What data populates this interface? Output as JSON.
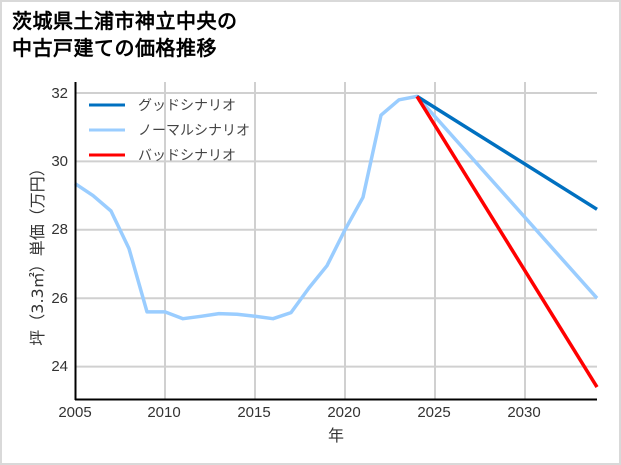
{
  "title": {
    "line1": "茨城県土浦市神立中央の",
    "line2": "中古戸建ての価格推移"
  },
  "colors": {
    "good": "#0070C0",
    "normal": "#9ACDFF",
    "bad": "#FF0000",
    "grid": "#d0d0d0",
    "axis": "#000000"
  },
  "chart_data": {
    "type": "line",
    "title": "茨城県土浦市神立中央の中古戸建ての価格推移",
    "xlabel": "年",
    "ylabel": "坪（3.3㎡）単価（万円）",
    "xlim": [
      2005,
      2034
    ],
    "ylim": [
      23.05,
      32.3
    ],
    "xticks": [
      2005,
      2010,
      2015,
      2020,
      2025,
      2030
    ],
    "yticks": [
      24,
      26,
      28,
      30,
      32
    ],
    "grid": true,
    "legend_position": "upper left",
    "series": [
      {
        "name": "グッドシナリオ",
        "color": "#0070C0",
        "x": [
          2024,
          2034
        ],
        "values": [
          31.9,
          28.6
        ]
      },
      {
        "name": "ノーマルシナリオ",
        "color": "#9ACDFF",
        "x": [
          2005,
          2006,
          2007,
          2008,
          2009,
          2010,
          2011,
          2012,
          2013,
          2014,
          2015,
          2016,
          2017,
          2018,
          2019,
          2020,
          2021,
          2022,
          2023,
          2024,
          2034
        ],
        "values": [
          29.35,
          29.0,
          28.55,
          27.45,
          25.6,
          25.6,
          25.4,
          25.47,
          25.55,
          25.53,
          25.47,
          25.4,
          25.58,
          26.3,
          26.95,
          28.0,
          28.95,
          31.35,
          31.8,
          31.9,
          26.0
        ]
      },
      {
        "name": "バッドシナリオ",
        "color": "#FF0000",
        "x": [
          2024,
          2034
        ],
        "values": [
          31.9,
          23.4
        ]
      }
    ]
  },
  "legend": {
    "items": [
      {
        "label": "グッドシナリオ"
      },
      {
        "label": "ノーマルシナリオ"
      },
      {
        "label": "バッドシナリオ"
      }
    ]
  },
  "axes": {
    "xlabel": "年",
    "ylabel": "坪（3.3㎡）単価（万円）",
    "xticks": [
      "2005",
      "2010",
      "2015",
      "2020",
      "2025",
      "2030"
    ],
    "yticks": [
      "32",
      "30",
      "28",
      "26",
      "24"
    ]
  }
}
